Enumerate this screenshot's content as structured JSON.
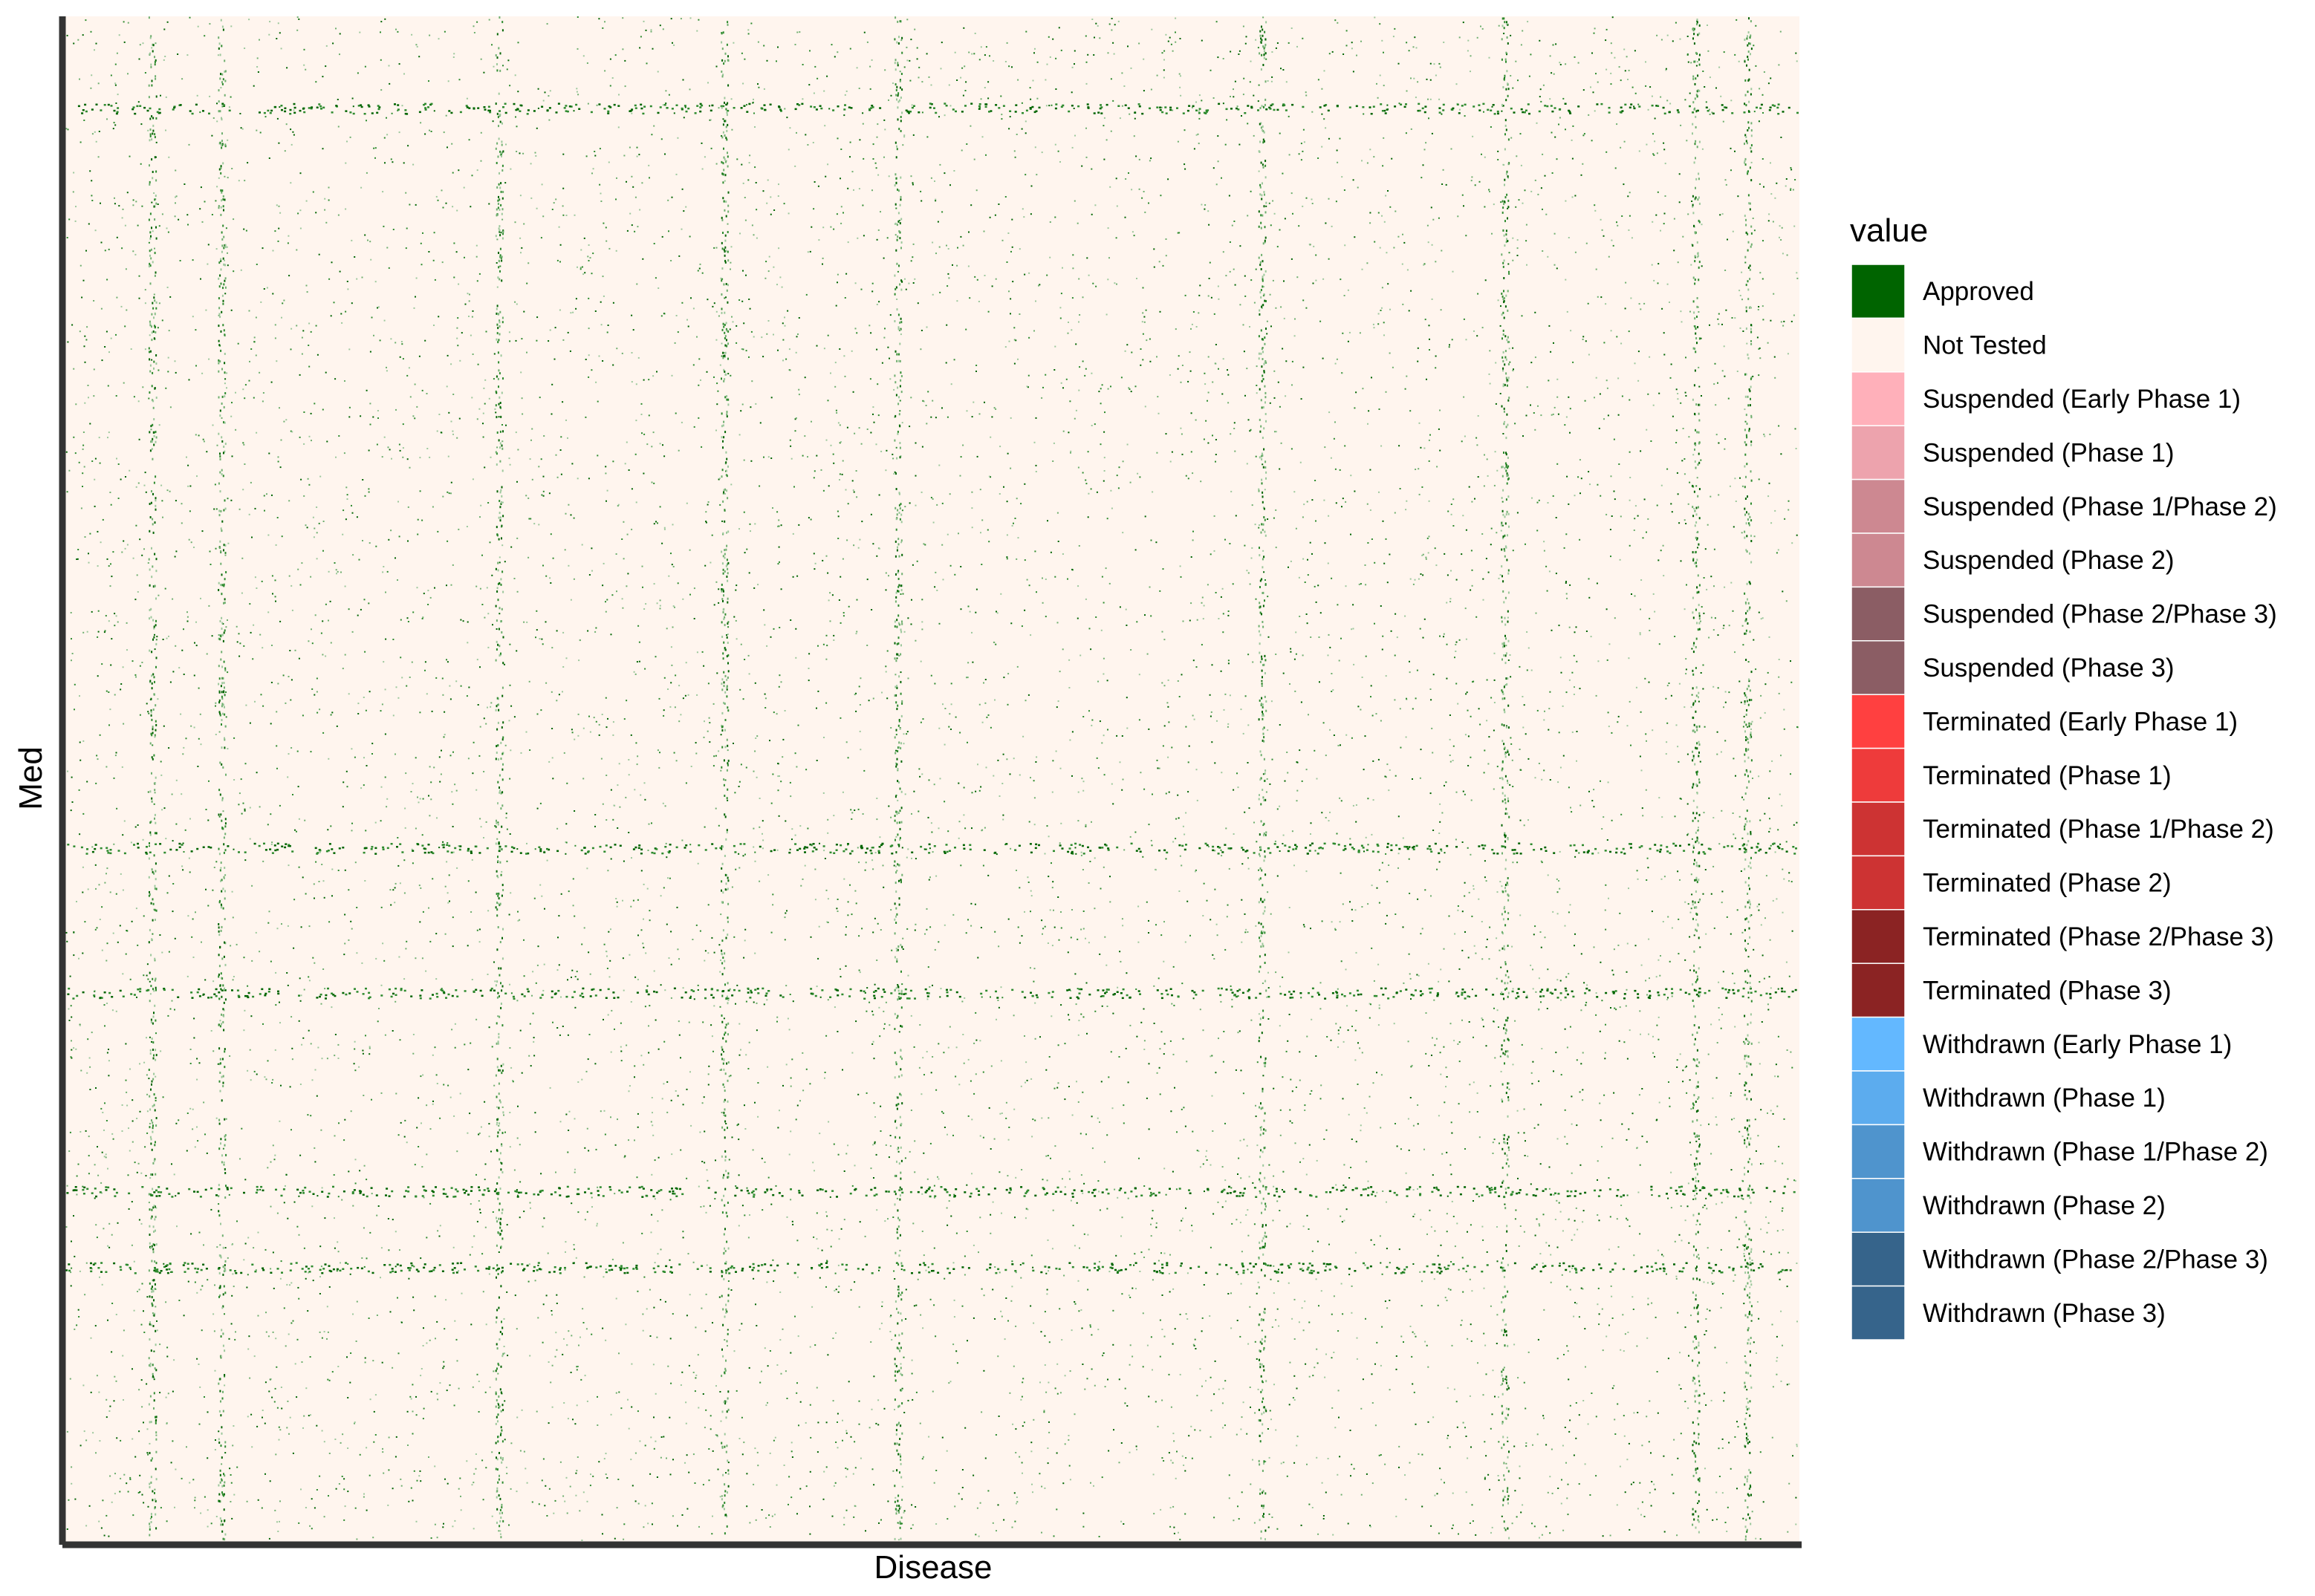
{
  "chart_data": {
    "type": "heatmap",
    "title": "",
    "xlabel": "Disease",
    "ylabel": "Med",
    "x_tick_labels": [],
    "y_tick_labels": [],
    "grid": false,
    "legend": {
      "title": "value",
      "placement": "right",
      "entries": [
        {
          "label": "Approved",
          "color": "#006400"
        },
        {
          "label": "Not Tested",
          "color": "#FFF5EE"
        },
        {
          "label": "Suspended (Early Phase 1)",
          "color": "#FFB0BA"
        },
        {
          "label": "Suspended (Phase 1)",
          "color": "#EDA3AD"
        },
        {
          "label": "Suspended (Phase 1/Phase 2)",
          "color": "#CD8891"
        },
        {
          "label": "Suspended (Phase 2)",
          "color": "#CD8891"
        },
        {
          "label": "Suspended (Phase 2/Phase 3)",
          "color": "#8B5D64"
        },
        {
          "label": "Suspended (Phase 3)",
          "color": "#8B5D64"
        },
        {
          "label": "Terminated (Early Phase 1)",
          "color": "#FF4040"
        },
        {
          "label": "Terminated (Phase 1)",
          "color": "#EE3B3B"
        },
        {
          "label": "Terminated (Phase 1/Phase 2)",
          "color": "#CD3333"
        },
        {
          "label": "Terminated (Phase 2)",
          "color": "#CD3333"
        },
        {
          "label": "Terminated (Phase 2/Phase 3)",
          "color": "#8B2323"
        },
        {
          "label": "Terminated (Phase 3)",
          "color": "#8B2323"
        },
        {
          "label": "Withdrawn (Early Phase 1)",
          "color": "#63B8FF"
        },
        {
          "label": "Withdrawn (Phase 1)",
          "color": "#5CACEE"
        },
        {
          "label": "Withdrawn (Phase 1/Phase 2)",
          "color": "#4F94CD"
        },
        {
          "label": "Withdrawn (Phase 2)",
          "color": "#4F94CD"
        },
        {
          "label": "Withdrawn (Phase 2/Phase 3)",
          "color": "#36648B"
        },
        {
          "label": "Withdrawn (Phase 3)",
          "color": "#36648B"
        }
      ]
    },
    "background_value": "Not Tested",
    "approximate_cells": {
      "comment_free": true,
      "dense_rows_fraction": [
        0.06,
        0.545,
        0.64,
        0.77,
        0.82
      ],
      "dense_cols_fraction": [
        0.05,
        0.09,
        0.25,
        0.38,
        0.48,
        0.69,
        0.83,
        0.94,
        0.97
      ],
      "approved_fill_fraction": 0.004
    }
  }
}
